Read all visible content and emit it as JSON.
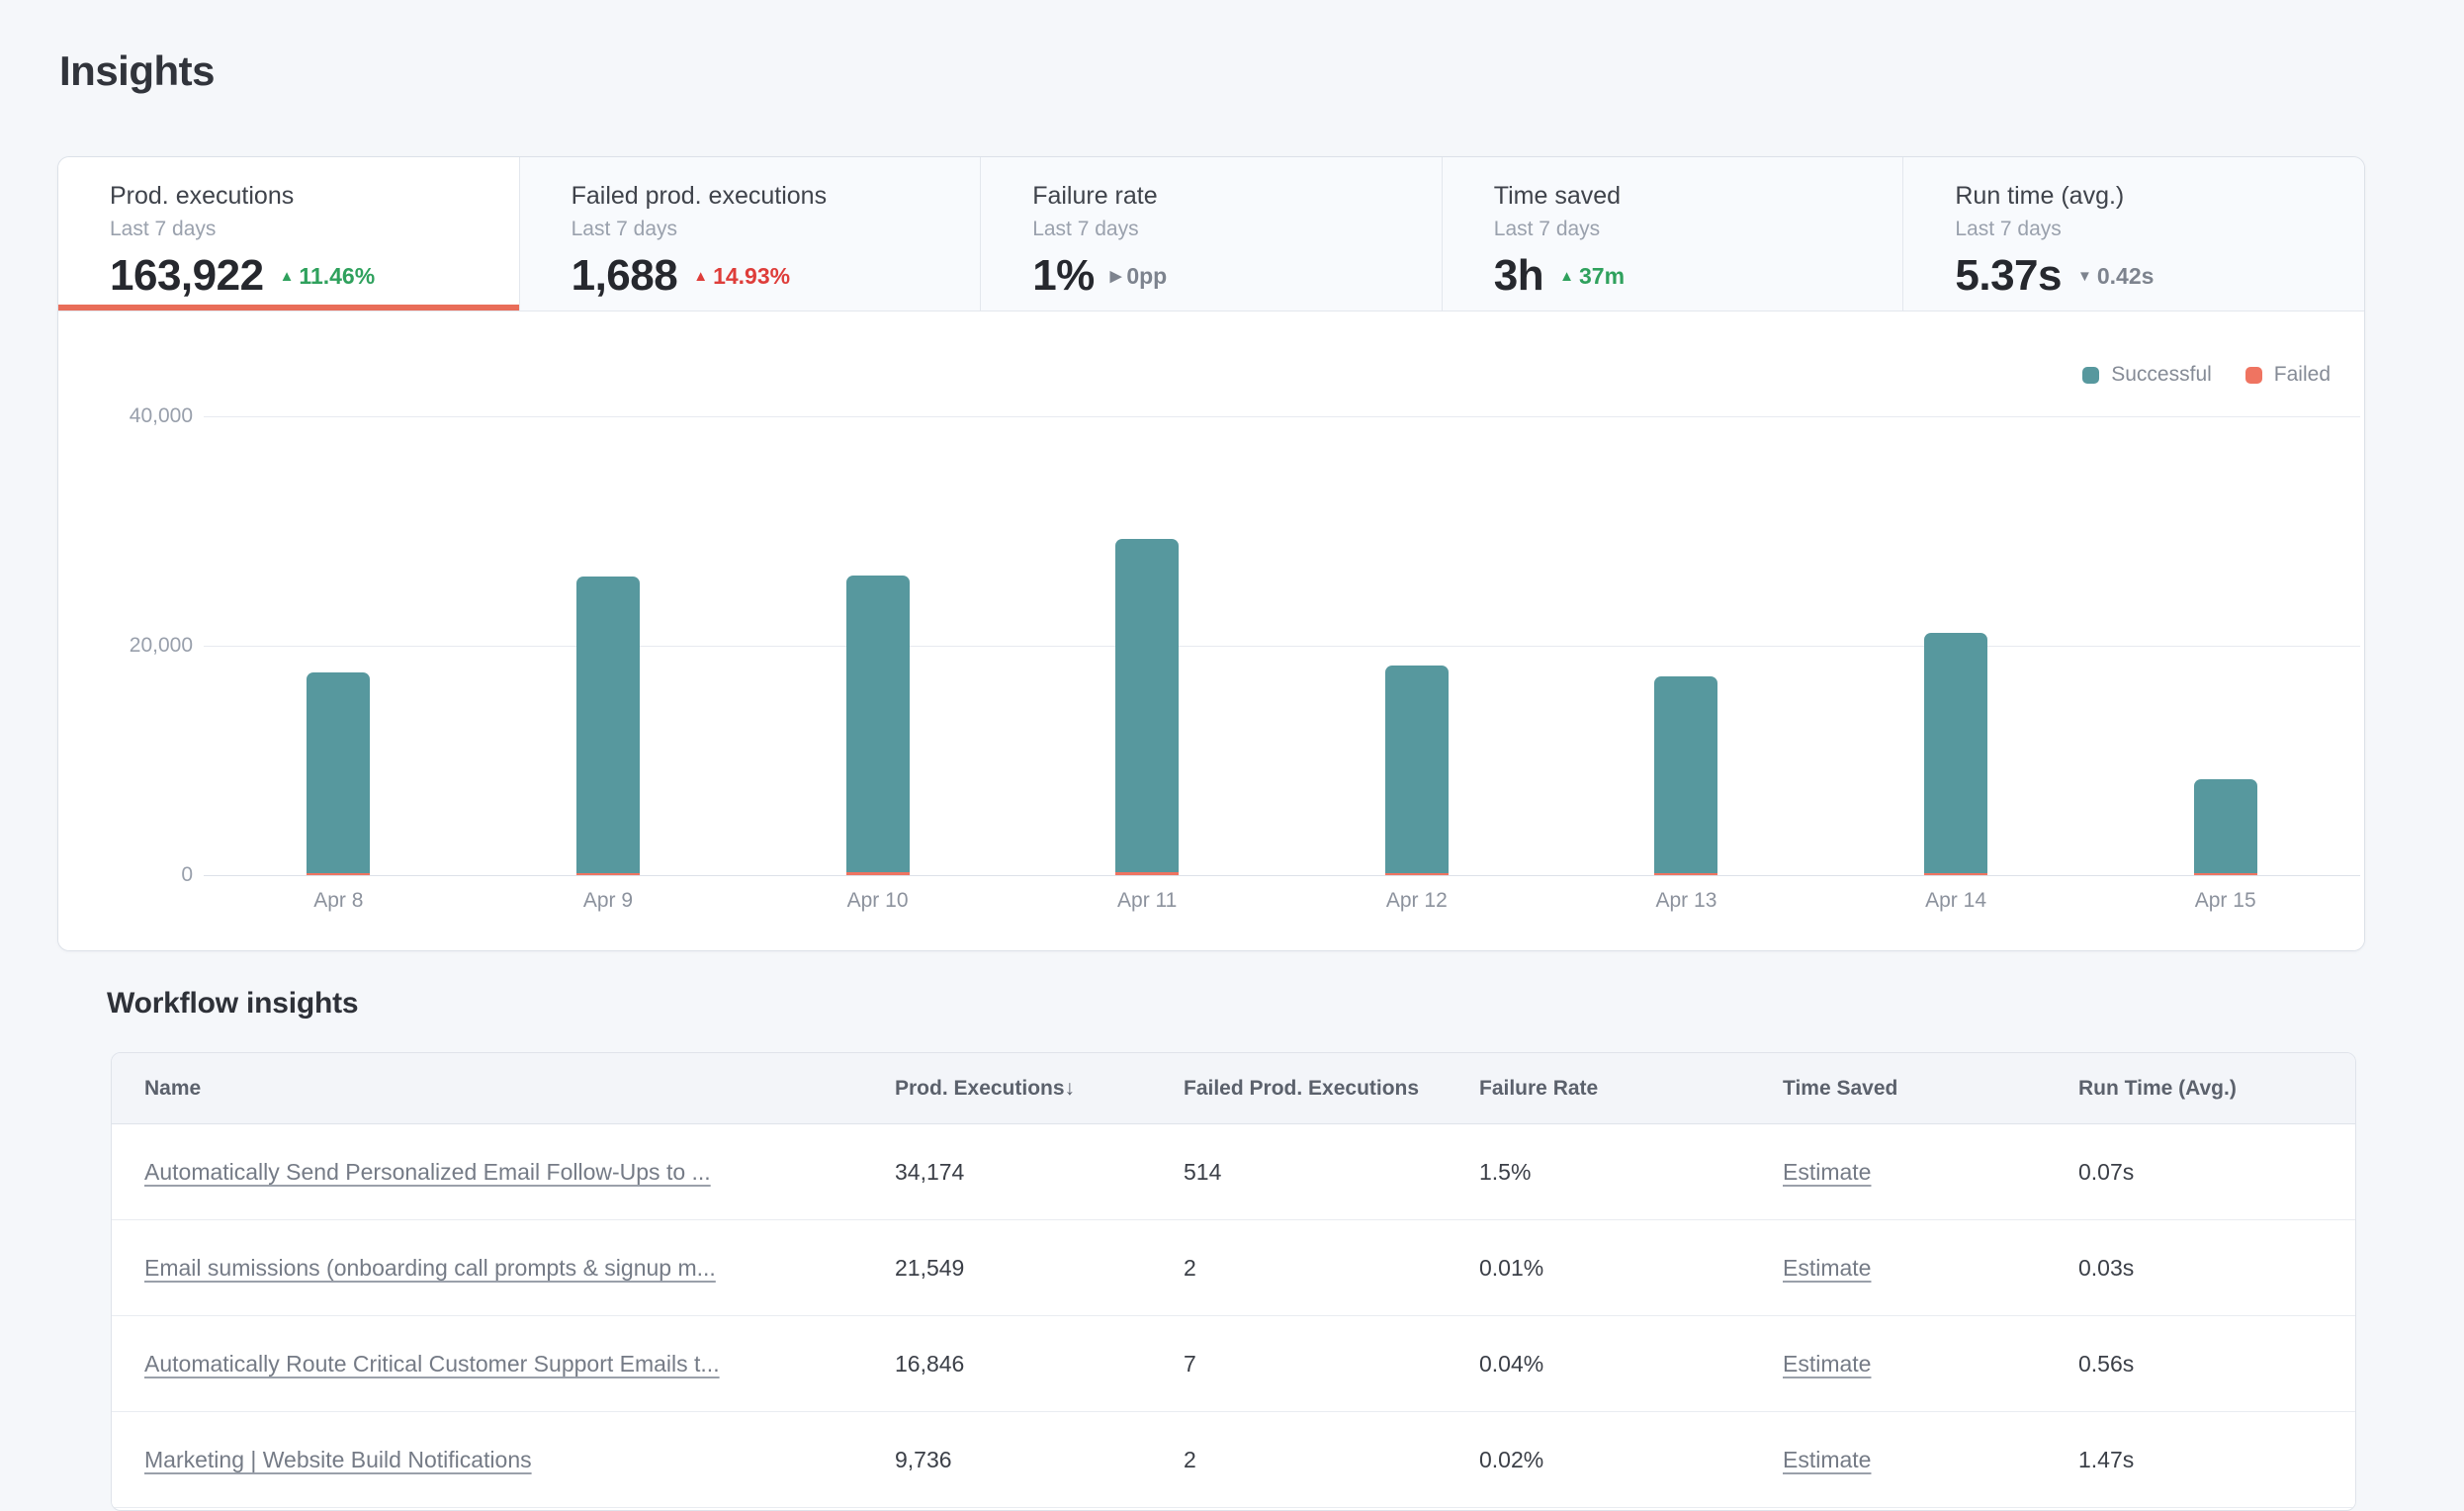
{
  "page": {
    "title": "Insights",
    "section_title": "Workflow insights"
  },
  "icons": {
    "up": "▲",
    "down": "▼",
    "flat": "▶",
    "sort_desc": "↓"
  },
  "colors": {
    "accent_underline": "#e96d59",
    "successful": "#57989e",
    "failed": "#ef7461",
    "positive": "#2fa15d",
    "negative": "#de3d3a",
    "neutral": "#7d838e"
  },
  "metric_tabs": [
    {
      "label": "Prod. executions",
      "period": "Last 7 days",
      "value": "163,922",
      "delta": "11.46%",
      "direction": "up",
      "tone": "positive",
      "active": true
    },
    {
      "label": "Failed prod. executions",
      "period": "Last 7 days",
      "value": "1,688",
      "delta": "14.93%",
      "direction": "up",
      "tone": "negative",
      "active": false
    },
    {
      "label": "Failure rate",
      "period": "Last 7 days",
      "value": "1%",
      "delta": "0pp",
      "direction": "flat",
      "tone": "neutral",
      "active": false
    },
    {
      "label": "Time saved",
      "period": "Last 7 days",
      "value": "3h",
      "delta": "37m",
      "direction": "up",
      "tone": "positive",
      "active": false
    },
    {
      "label": "Run time (avg.)",
      "period": "Last 7 days",
      "value": "5.37s",
      "delta": "0.42s",
      "direction": "down",
      "tone": "neutral",
      "active": false
    }
  ],
  "chart_data": {
    "type": "bar",
    "stacked": true,
    "categories": [
      "Apr 8",
      "Apr 9",
      "Apr 10",
      "Apr 11",
      "Apr 12",
      "Apr 13",
      "Apr 14",
      "Apr 15"
    ],
    "series": [
      {
        "name": "Successful",
        "color": "#57989e",
        "values": [
          17500,
          25800,
          25900,
          29100,
          18100,
          17100,
          20900,
          8200
        ]
      },
      {
        "name": "Failed",
        "color": "#ef7461",
        "values": [
          210,
          215,
          220,
          230,
          210,
          200,
          215,
          188
        ]
      }
    ],
    "title": "",
    "xlabel": "",
    "ylabel": "",
    "ylim": [
      0,
      40000
    ],
    "yticks": [
      {
        "value": 0,
        "label": "0"
      },
      {
        "value": 20000,
        "label": "20,000"
      },
      {
        "value": 40000,
        "label": "40,000"
      }
    ],
    "grid": true,
    "legend_position": "top-right"
  },
  "table": {
    "columns": [
      "Name",
      "Prod. Executions",
      "Failed Prod. Executions",
      "Failure Rate",
      "Time Saved",
      "Run Time (Avg.)"
    ],
    "sorted_column_index": 1,
    "sort_direction": "desc",
    "rows": [
      {
        "name": "Automatically Send Personalized Email Follow-Ups to ...",
        "prod_executions": "34,174",
        "failed_prod_executions": "514",
        "failure_rate": "1.5%",
        "time_saved": "Estimate",
        "run_time": "0.07s"
      },
      {
        "name": "Email sumissions (onboarding call prompts & signup m...",
        "prod_executions": "21,549",
        "failed_prod_executions": "2",
        "failure_rate": "0.01%",
        "time_saved": "Estimate",
        "run_time": "0.03s"
      },
      {
        "name": "Automatically Route Critical Customer Support Emails t...",
        "prod_executions": "16,846",
        "failed_prod_executions": "7",
        "failure_rate": "0.04%",
        "time_saved": "Estimate",
        "run_time": "0.56s"
      },
      {
        "name": "Marketing | Website Build Notifications",
        "prod_executions": "9,736",
        "failed_prod_executions": "2",
        "failure_rate": "0.02%",
        "time_saved": "Estimate",
        "run_time": "1.47s"
      }
    ]
  }
}
